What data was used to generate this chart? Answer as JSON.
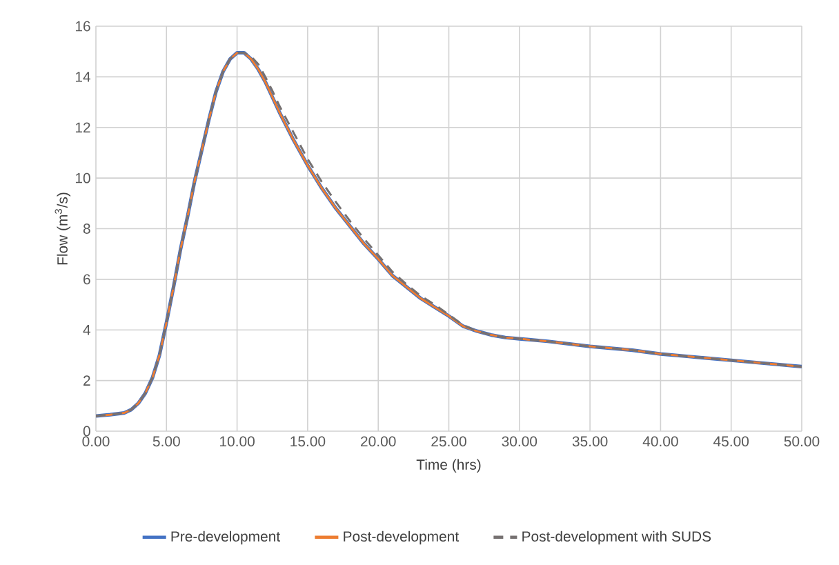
{
  "chart_data": {
    "type": "line",
    "xlabel": "Time (hrs)",
    "ylabel": "Flow (m$^{3}$/s)",
    "x": [
      0,
      1,
      2,
      2.5,
      3,
      3.5,
      4,
      4.5,
      5,
      5.5,
      6,
      6.5,
      7,
      7.5,
      8,
      8.5,
      9,
      9.5,
      10,
      10.5,
      11,
      11.5,
      12,
      12.5,
      13,
      14,
      15,
      16,
      17,
      18,
      19,
      20,
      21,
      22,
      23,
      24,
      25,
      26,
      27,
      28,
      29,
      30,
      32,
      35,
      38,
      40,
      42,
      45,
      48,
      50
    ],
    "series": [
      {
        "name": "Pre-development",
        "color": "#4472c4",
        "line_style": "solid",
        "values": [
          0.6,
          0.65,
          0.72,
          0.85,
          1.1,
          1.5,
          2.1,
          3.0,
          4.3,
          5.7,
          7.2,
          8.5,
          9.9,
          11.1,
          12.3,
          13.4,
          14.2,
          14.7,
          14.95,
          14.95,
          14.7,
          14.3,
          13.8,
          13.2,
          12.6,
          11.5,
          10.5,
          9.6,
          8.8,
          8.1,
          7.4,
          6.8,
          6.15,
          5.7,
          5.25,
          4.9,
          4.55,
          4.15,
          3.95,
          3.8,
          3.7,
          3.65,
          3.55,
          3.35,
          3.2,
          3.05,
          2.95,
          2.8,
          2.65,
          2.55
        ]
      },
      {
        "name": "Post-development",
        "color": "#ed7d31",
        "line_style": "solid",
        "values": [
          0.6,
          0.65,
          0.72,
          0.85,
          1.1,
          1.5,
          2.1,
          3.0,
          4.3,
          5.7,
          7.2,
          8.5,
          9.9,
          11.1,
          12.3,
          13.4,
          14.2,
          14.7,
          14.95,
          14.95,
          14.7,
          14.3,
          13.8,
          13.2,
          12.6,
          11.5,
          10.5,
          9.6,
          8.8,
          8.1,
          7.4,
          6.8,
          6.15,
          5.7,
          5.25,
          4.9,
          4.55,
          4.15,
          3.95,
          3.8,
          3.7,
          3.65,
          3.55,
          3.35,
          3.2,
          3.05,
          2.95,
          2.8,
          2.65,
          2.55
        ]
      },
      {
        "name": "Post-development with SUDS",
        "color": "#767171",
        "line_style": "dashed",
        "values": [
          0.6,
          0.65,
          0.72,
          0.85,
          1.1,
          1.5,
          2.1,
          3.0,
          4.3,
          5.7,
          7.2,
          8.5,
          9.9,
          11.1,
          12.3,
          13.4,
          14.2,
          14.7,
          14.95,
          14.95,
          14.8,
          14.5,
          14.0,
          13.45,
          12.85,
          11.8,
          10.75,
          9.85,
          9.05,
          8.3,
          7.6,
          6.95,
          6.3,
          5.8,
          5.35,
          5.0,
          4.6,
          4.2,
          3.95,
          3.8,
          3.7,
          3.65,
          3.55,
          3.35,
          3.2,
          3.05,
          2.95,
          2.8,
          2.65,
          2.55
        ]
      }
    ],
    "xlim": [
      0,
      50
    ],
    "xticks": [
      {
        "value": 0,
        "label": "0.00"
      },
      {
        "value": 5,
        "label": "5.00"
      },
      {
        "value": 10,
        "label": "10.00"
      },
      {
        "value": 15,
        "label": "15.00"
      },
      {
        "value": 20,
        "label": "20.00"
      },
      {
        "value": 25,
        "label": "25.00"
      },
      {
        "value": 30,
        "label": "30.00"
      },
      {
        "value": 35,
        "label": "35.00"
      },
      {
        "value": 40,
        "label": "40.00"
      },
      {
        "value": 45,
        "label": "45.00"
      },
      {
        "value": 50,
        "label": "50.00"
      }
    ],
    "ylim": [
      0,
      16
    ],
    "yticks": [
      0,
      2,
      4,
      6,
      8,
      10,
      12,
      14,
      16
    ],
    "grid": true,
    "legend": "bottom",
    "marker": "none"
  }
}
